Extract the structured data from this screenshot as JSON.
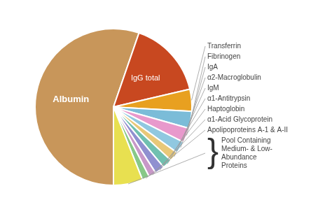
{
  "chart_data": {
    "type": "pie",
    "categories": [
      "Albumin",
      "IgG total",
      "Transferrin",
      "Fibrinogen",
      "IgA",
      "α2-Macroglobulin",
      "IgM",
      "α1-Antitrypsin",
      "Haptoglobin",
      "α1-Acid Glycoprotein",
      "Apolipoproteins A-1 & A-II",
      "Pool Containing\nMedium- & Low-\nAbundance\nProteins"
    ],
    "values": [
      55,
      16,
      4.5,
      3.5,
      3,
      2.5,
      2,
      2,
      2,
      1.5,
      1.5,
      6
    ],
    "colors": [
      "#C8965A",
      "#C84820",
      "#E8A020",
      "#7BBCD8",
      "#E899CC",
      "#90C8E0",
      "#E8C878",
      "#70C0B0",
      "#9090D0",
      "#C898C8",
      "#88C888",
      "#E8E050"
    ],
    "annotations": [
      "}"
    ]
  }
}
